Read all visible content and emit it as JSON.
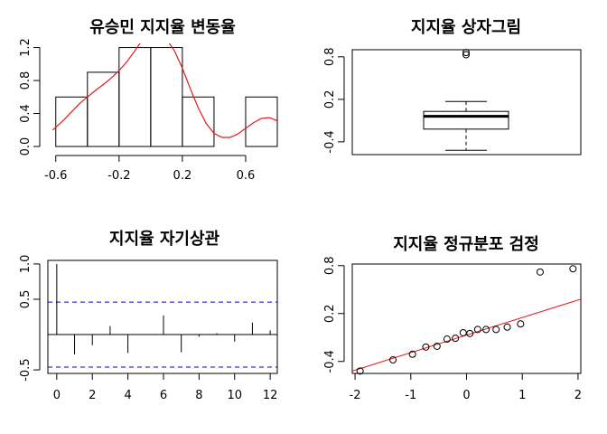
{
  "chart_data": [
    {
      "type": "bar",
      "title": "유승민 지지율 변동율",
      "xlabel": "",
      "ylabel": "",
      "bins": [
        {
          "x0": -0.6,
          "x1": -0.4,
          "density": 0.6
        },
        {
          "x0": -0.4,
          "x1": -0.2,
          "density": 0.9
        },
        {
          "x0": -0.2,
          "x1": 0.0,
          "density": 1.2
        },
        {
          "x0": 0.0,
          "x1": 0.2,
          "density": 1.2
        },
        {
          "x0": 0.2,
          "x1": 0.4,
          "density": 0.6
        },
        {
          "x0": 0.4,
          "x1": 0.6,
          "density": 0.0
        },
        {
          "x0": 0.6,
          "x1": 0.8,
          "density": 0.6
        }
      ],
      "density_curve": {
        "color": "#e31a1c",
        "x": [
          -0.62,
          -0.55,
          -0.5,
          -0.45,
          -0.4,
          -0.35,
          -0.3,
          -0.25,
          -0.2,
          -0.15,
          -0.1,
          -0.05,
          0.0,
          0.05,
          0.1,
          0.15,
          0.2,
          0.25,
          0.3,
          0.35,
          0.4,
          0.45,
          0.5,
          0.55,
          0.6,
          0.65,
          0.7,
          0.75,
          0.8,
          0.85
        ],
        "y": [
          0.2,
          0.32,
          0.42,
          0.52,
          0.6,
          0.68,
          0.75,
          0.83,
          0.92,
          1.03,
          1.16,
          1.3,
          1.4,
          1.4,
          1.3,
          1.16,
          0.95,
          0.7,
          0.47,
          0.28,
          0.16,
          0.11,
          0.11,
          0.15,
          0.22,
          0.29,
          0.34,
          0.35,
          0.31,
          0.25
        ]
      },
      "xlim": [
        -0.65,
        0.8
      ],
      "ylim": [
        0,
        1.25
      ],
      "x_ticks": [
        -0.6,
        -0.2,
        0.2,
        0.6
      ],
      "x_tick_labels": [
        "-0.6",
        "-0.2",
        "0.2",
        "0.6"
      ],
      "y_ticks": [
        0,
        0.4,
        0.8,
        1.2
      ],
      "y_tick_labels": [
        "0.0",
        "0.4",
        "0.8",
        "1.2"
      ]
    },
    {
      "type": "box",
      "title": "지지율 상자그림",
      "box": {
        "whisker_low": -0.52,
        "q1": -0.22,
        "median": -0.04,
        "q3": 0.03,
        "whisker_high": 0.17
      },
      "outliers": [
        0.83,
        0.86
      ],
      "ylim": [
        -0.58,
        0.9
      ],
      "y_ticks": [
        -0.4,
        0.2,
        0.8
      ],
      "y_tick_labels": [
        "-0.4",
        "0.2",
        "0.8"
      ]
    },
    {
      "type": "bar",
      "title": "지지율 자기상관",
      "lags": [
        0,
        1,
        2,
        3,
        4,
        5,
        6,
        7,
        8,
        9,
        10,
        11,
        12
      ],
      "acf": [
        1.0,
        -0.28,
        -0.15,
        0.12,
        -0.26,
        0.0,
        0.27,
        -0.25,
        -0.03,
        0.02,
        -0.1,
        0.17,
        0.06
      ],
      "confidence_band": 0.46,
      "band_color": "#0000cc",
      "xlim": [
        -0.5,
        12.4
      ],
      "ylim": [
        -0.55,
        1.05
      ],
      "x_ticks": [
        0,
        2,
        4,
        6,
        8,
        10,
        12
      ],
      "x_tick_labels": [
        "0",
        "2",
        "4",
        "6",
        "8",
        "10",
        "12"
      ],
      "y_ticks": [
        -0.5,
        0.5,
        1.0
      ],
      "y_tick_labels": [
        "-0.5",
        "0.5",
        "1.0"
      ]
    },
    {
      "type": "scatter",
      "title": "지지율 정규분포 검정",
      "points": {
        "x": [
          -1.91,
          -1.32,
          -0.97,
          -0.73,
          -0.53,
          -0.35,
          -0.2,
          -0.06,
          0.06,
          0.2,
          0.35,
          0.53,
          0.73,
          0.97,
          1.32,
          1.91
        ],
        "y": [
          -0.52,
          -0.38,
          -0.31,
          -0.22,
          -0.21,
          -0.12,
          -0.11,
          -0.04,
          -0.05,
          0.0,
          0.0,
          0.0,
          0.03,
          0.07,
          0.72,
          0.76
        ]
      },
      "qq_line": {
        "x": [
          -2.05,
          2.05
        ],
        "y": [
          -0.52,
          0.38
        ],
        "color": "#e31a1c"
      },
      "xlim": [
        -2.05,
        2.05
      ],
      "ylim": [
        -0.55,
        0.82
      ],
      "x_ticks": [
        -2,
        -1,
        0,
        1,
        2
      ],
      "x_tick_labels": [
        "-2",
        "-1",
        "0",
        "1",
        "2"
      ],
      "y_ticks": [
        -0.4,
        0.2,
        0.8
      ],
      "y_tick_labels": [
        "-0.4",
        "0.2",
        "0.8"
      ]
    }
  ]
}
